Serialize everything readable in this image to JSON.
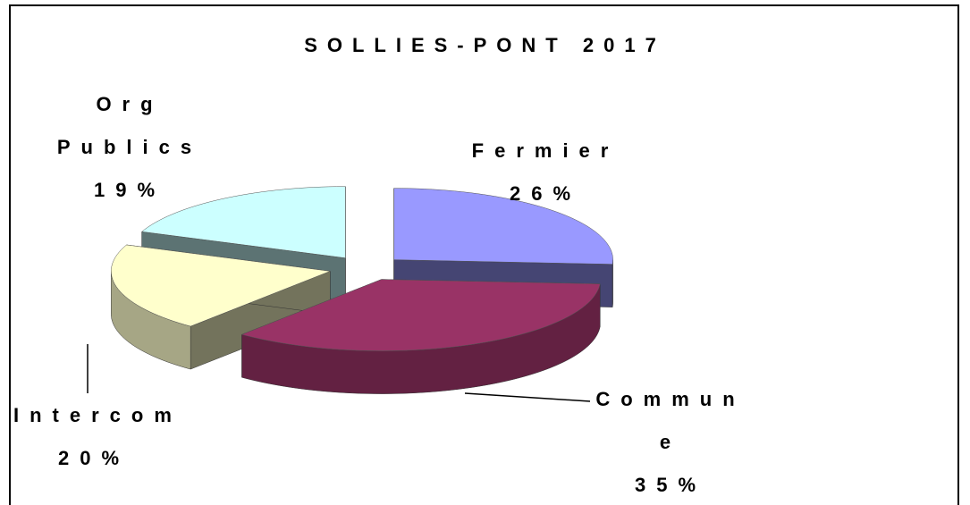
{
  "chart_data": {
    "type": "pie",
    "title": "SOLLIES-PONT 2017",
    "categories": [
      "Fermier",
      "Commune",
      "Intercom",
      "Org Publics"
    ],
    "values": [
      26,
      35,
      20,
      19
    ],
    "value_labels": [
      "26%",
      "35%",
      "20%",
      "19%"
    ],
    "colors": [
      "#9999ff",
      "#993366",
      "#ffffcc",
      "#ccffff"
    ]
  }
}
